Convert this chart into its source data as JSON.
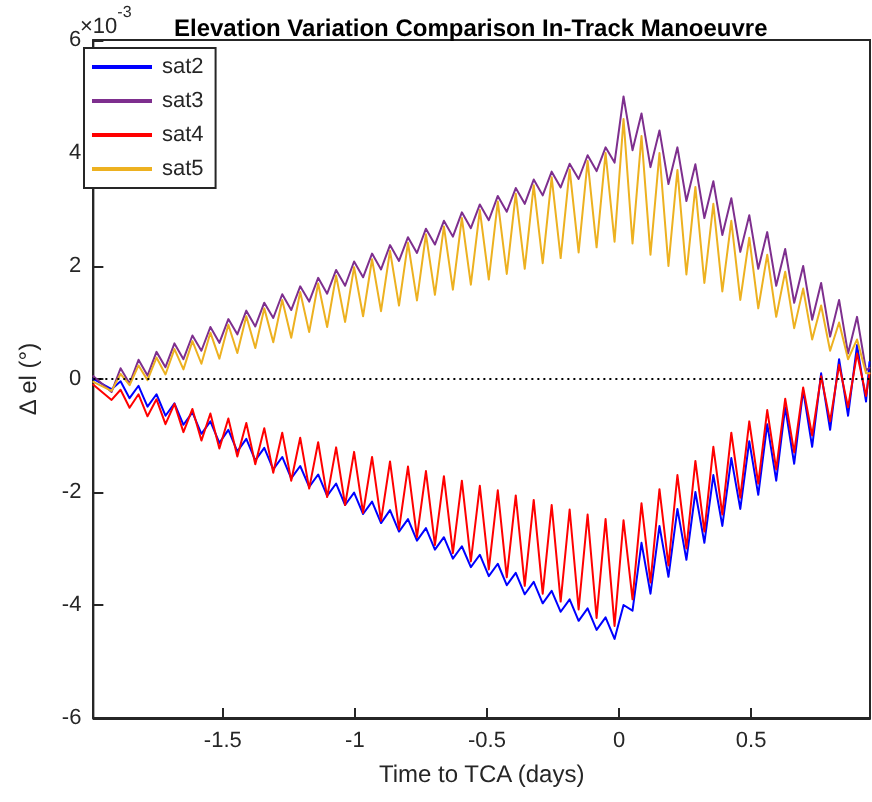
{
  "chart_data": {
    "type": "line",
    "title": "Elevation Variation Comparison In-Track Manoeuvre",
    "xlabel": "Time to TCA (days)",
    "ylabel": "Δ el (°)",
    "annotations": [
      "×10$^{-3}$"
    ],
    "x": [
      -1.99,
      -1.921,
      -1.887,
      -1.853,
      -1.819,
      -1.785,
      -1.751,
      -1.717,
      -1.683,
      -1.649,
      -1.615,
      -1.581,
      -1.547,
      -1.513,
      -1.479,
      -1.445,
      -1.411,
      -1.377,
      -1.343,
      -1.309,
      -1.275,
      -1.241,
      -1.207,
      -1.173,
      -1.139,
      -1.105,
      -1.071,
      -1.037,
      -1.003,
      -0.969,
      -0.935,
      -0.901,
      -0.867,
      -0.833,
      -0.799,
      -0.765,
      -0.731,
      -0.697,
      -0.663,
      -0.629,
      -0.595,
      -0.561,
      -0.527,
      -0.493,
      -0.459,
      -0.425,
      -0.391,
      -0.357,
      -0.323,
      -0.289,
      -0.255,
      -0.221,
      -0.187,
      -0.153,
      -0.119,
      -0.085,
      -0.051,
      -0.017,
      0.017,
      0.051,
      0.085,
      0.119,
      0.153,
      0.187,
      0.221,
      0.255,
      0.289,
      0.323,
      0.357,
      0.391,
      0.425,
      0.459,
      0.493,
      0.527,
      0.561,
      0.595,
      0.629,
      0.663,
      0.697,
      0.731,
      0.765,
      0.799,
      0.833,
      0.867,
      0.901,
      0.935,
      0.948
    ],
    "series": [
      {
        "name": "sat2",
        "color": "#0000ff",
        "values": [
          0,
          -0.18,
          -0.04,
          -0.34,
          -0.12,
          -0.49,
          -0.27,
          -0.65,
          -0.43,
          -0.81,
          -0.59,
          -0.97,
          -0.75,
          -1.13,
          -0.9,
          -1.28,
          -1.06,
          -1.44,
          -1.22,
          -1.6,
          -1.38,
          -1.76,
          -1.54,
          -1.91,
          -1.69,
          -2.07,
          -1.85,
          -2.23,
          -2.01,
          -2.39,
          -2.17,
          -2.55,
          -2.32,
          -2.7,
          -2.48,
          -2.86,
          -2.64,
          -3.02,
          -2.8,
          -3.18,
          -2.96,
          -3.33,
          -3.11,
          -3.49,
          -3.27,
          -3.65,
          -3.43,
          -3.81,
          -3.59,
          -3.97,
          -3.75,
          -4.12,
          -3.9,
          -4.28,
          -4.06,
          -4.44,
          -4.22,
          -4.6,
          -4.0,
          -4.1,
          -2.9,
          -3.8,
          -2.6,
          -3.5,
          -2.3,
          -3.2,
          -2.0,
          -2.9,
          -1.7,
          -2.6,
          -1.4,
          -2.3,
          -1.1,
          -2.05,
          -0.8,
          -1.8,
          -0.5,
          -1.5,
          -0.2,
          -1.2,
          0.1,
          -0.9,
          0.35,
          -0.65,
          0.6,
          -0.4,
          0.3
        ]
      },
      {
        "name": "sat3",
        "color": "#7e2f8e",
        "values": [
          0.05,
          -0.23,
          0.19,
          -0.08,
          0.34,
          0.06,
          0.48,
          0.21,
          0.63,
          0.35,
          0.77,
          0.5,
          0.92,
          0.64,
          1.06,
          0.79,
          1.21,
          0.93,
          1.35,
          1.08,
          1.5,
          1.22,
          1.64,
          1.37,
          1.79,
          1.51,
          1.93,
          1.65,
          2.08,
          1.8,
          2.22,
          1.94,
          2.37,
          2.09,
          2.51,
          2.23,
          2.66,
          2.38,
          2.8,
          2.52,
          2.95,
          2.67,
          3.09,
          2.81,
          3.24,
          2.96,
          3.38,
          3.1,
          3.53,
          3.25,
          3.67,
          3.39,
          3.81,
          3.54,
          3.96,
          3.68,
          4.1,
          3.83,
          5.0,
          4.05,
          4.7,
          3.75,
          4.4,
          3.45,
          4.1,
          3.15,
          3.8,
          2.85,
          3.5,
          2.55,
          3.2,
          2.25,
          2.9,
          1.95,
          2.6,
          1.65,
          2.3,
          1.35,
          2.0,
          1.05,
          1.7,
          0.75,
          1.4,
          0.45,
          1.1,
          0.15,
          0.2
        ]
      },
      {
        "name": "sat4",
        "color": "#ff0000",
        "values": [
          -0.1,
          -0.37,
          -0.19,
          -0.51,
          -0.27,
          -0.66,
          -0.36,
          -0.8,
          -0.44,
          -0.94,
          -0.53,
          -1.09,
          -0.61,
          -1.23,
          -0.7,
          -1.37,
          -0.78,
          -1.51,
          -0.87,
          -1.66,
          -0.95,
          -1.8,
          -1.04,
          -1.94,
          -1.12,
          -2.09,
          -1.21,
          -2.23,
          -1.29,
          -2.37,
          -1.38,
          -2.51,
          -1.46,
          -2.66,
          -1.55,
          -2.8,
          -1.63,
          -2.94,
          -1.72,
          -3.08,
          -1.8,
          -3.23,
          -1.89,
          -3.37,
          -1.97,
          -3.51,
          -2.06,
          -3.66,
          -2.14,
          -3.8,
          -2.23,
          -3.94,
          -2.31,
          -4.08,
          -2.4,
          -4.23,
          -2.48,
          -4.37,
          -2.5,
          -3.9,
          -2.2,
          -3.6,
          -1.95,
          -3.3,
          -1.7,
          -3.0,
          -1.45,
          -2.7,
          -1.2,
          -2.4,
          -0.95,
          -2.1,
          -0.75,
          -1.85,
          -0.55,
          -1.6,
          -0.35,
          -1.3,
          -0.15,
          -1.0,
          0.05,
          -0.75,
          0.25,
          -0.5,
          0.45,
          -0.3,
          0.1
        ]
      },
      {
        "name": "sat5",
        "color": "#edb120",
        "values": [
          -0.05,
          -0.21,
          0.09,
          -0.11,
          0.24,
          -0.02,
          0.38,
          0.08,
          0.53,
          0.17,
          0.67,
          0.27,
          0.82,
          0.36,
          0.96,
          0.46,
          1.11,
          0.55,
          1.25,
          0.65,
          1.4,
          0.73,
          1.54,
          0.83,
          1.69,
          0.92,
          1.83,
          1.01,
          1.98,
          1.11,
          2.12,
          1.2,
          2.27,
          1.3,
          2.41,
          1.39,
          2.56,
          1.49,
          2.7,
          1.58,
          2.85,
          1.67,
          2.99,
          1.76,
          3.14,
          1.86,
          3.28,
          1.95,
          3.43,
          2.05,
          3.57,
          2.14,
          3.71,
          2.24,
          3.86,
          2.33,
          4.0,
          2.43,
          4.6,
          2.4,
          4.3,
          2.2,
          4.0,
          2.0,
          3.7,
          1.85,
          3.4,
          1.7,
          3.1,
          1.55,
          2.8,
          1.4,
          2.5,
          1.25,
          2.2,
          1.1,
          1.9,
          0.9,
          1.6,
          0.7,
          1.3,
          0.5,
          1.0,
          0.35,
          0.7,
          0.1,
          0.1
        ]
      }
    ],
    "xlim": [
      -1.99,
      0.95
    ],
    "xticks": [
      -1.5,
      -1,
      -0.5,
      0,
      0.5
    ],
    "ylim": [
      -6,
      6
    ],
    "yticks": [
      -6,
      -4,
      -2,
      0,
      2,
      4,
      6
    ],
    "ref_lines": [
      {
        "axis": "y",
        "value": 0,
        "color": "#000000",
        "line_style": "dotted"
      }
    ],
    "grid": false,
    "legend": "top left",
    "marker": "none",
    "line_style": "solid"
  }
}
